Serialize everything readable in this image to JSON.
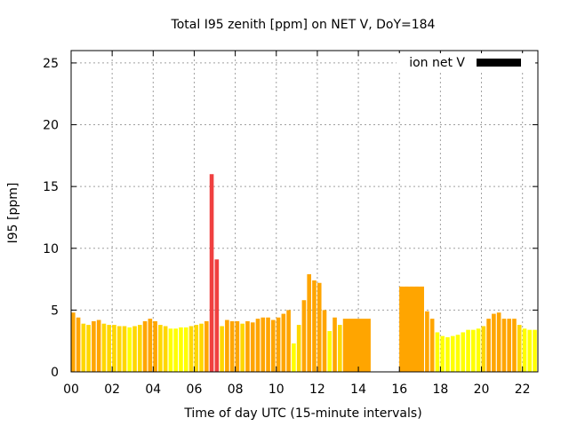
{
  "chart_data": {
    "type": "bar",
    "title": "Total I95 zenith [ppm] on NET V, DoY=184",
    "xlabel": "Time of day UTC (15-minute intervals)",
    "ylabel": "I95 [ppm]",
    "xlim": [
      0,
      22.75
    ],
    "ylim": [
      0,
      26
    ],
    "grid": true,
    "legend_position": "top-right",
    "legend": {
      "label": "ion net V",
      "color": "#000000"
    },
    "xticks": [
      "00",
      "02",
      "04",
      "06",
      "08",
      "10",
      "12",
      "14",
      "16",
      "18",
      "20",
      "22"
    ],
    "yticks": [
      "0",
      "5",
      "10",
      "15",
      "20",
      "25"
    ],
    "colors": {
      "low": "#ffff00",
      "mid": "#ffd700",
      "elevated": "#ffa500",
      "high": "#f04040"
    },
    "bar_width_hours": 0.2,
    "bars": [
      [
        0.0,
        4.8
      ],
      [
        0.25,
        4.4
      ],
      [
        0.5,
        3.9
      ],
      [
        0.75,
        3.8
      ],
      [
        1.0,
        4.1
      ],
      [
        1.25,
        4.2
      ],
      [
        1.5,
        3.9
      ],
      [
        1.75,
        3.8
      ],
      [
        2.0,
        3.8
      ],
      [
        2.25,
        3.7
      ],
      [
        2.5,
        3.7
      ],
      [
        2.75,
        3.6
      ],
      [
        3.0,
        3.7
      ],
      [
        3.25,
        3.8
      ],
      [
        3.5,
        4.1
      ],
      [
        3.75,
        4.3
      ],
      [
        4.0,
        4.1
      ],
      [
        4.25,
        3.8
      ],
      [
        4.5,
        3.7
      ],
      [
        4.75,
        3.5
      ],
      [
        5.0,
        3.5
      ],
      [
        5.25,
        3.6
      ],
      [
        5.5,
        3.6
      ],
      [
        5.75,
        3.7
      ],
      [
        6.0,
        3.8
      ],
      [
        6.25,
        3.9
      ],
      [
        6.5,
        4.1
      ],
      [
        6.75,
        16.0
      ],
      [
        7.0,
        9.1
      ],
      [
        7.25,
        3.7
      ],
      [
        7.5,
        4.2
      ],
      [
        7.75,
        4.1
      ],
      [
        8.0,
        4.1
      ],
      [
        8.25,
        3.9
      ],
      [
        8.5,
        4.1
      ],
      [
        8.75,
        4.0
      ],
      [
        9.0,
        4.3
      ],
      [
        9.25,
        4.4
      ],
      [
        9.5,
        4.4
      ],
      [
        9.75,
        4.2
      ],
      [
        10.0,
        4.4
      ],
      [
        10.25,
        4.7
      ],
      [
        10.5,
        5.0
      ],
      [
        10.75,
        2.3
      ],
      [
        11.0,
        3.8
      ],
      [
        11.25,
        5.8
      ],
      [
        11.5,
        7.9
      ],
      [
        11.75,
        7.4
      ],
      [
        12.0,
        7.2
      ],
      [
        12.25,
        5.0
      ],
      [
        12.5,
        3.3
      ],
      [
        12.75,
        4.4
      ],
      [
        13.0,
        3.8
      ],
      [
        16.0,
        6.9
      ],
      [
        16.25,
        6.9
      ],
      [
        16.5,
        6.9
      ],
      [
        16.75,
        6.9
      ],
      [
        17.0,
        6.9
      ],
      [
        17.25,
        4.9
      ],
      [
        17.5,
        4.3
      ],
      [
        17.75,
        3.2
      ],
      [
        18.0,
        2.9
      ],
      [
        18.25,
        2.8
      ],
      [
        18.5,
        2.9
      ],
      [
        18.75,
        3.0
      ],
      [
        19.0,
        3.2
      ],
      [
        19.25,
        3.4
      ],
      [
        19.5,
        3.4
      ],
      [
        19.75,
        3.5
      ],
      [
        20.0,
        3.7
      ],
      [
        20.25,
        4.3
      ],
      [
        20.5,
        4.7
      ],
      [
        20.75,
        4.8
      ],
      [
        21.0,
        4.3
      ],
      [
        21.25,
        4.3
      ],
      [
        21.5,
        4.3
      ],
      [
        21.75,
        3.8
      ],
      [
        22.0,
        3.5
      ],
      [
        22.25,
        3.4
      ],
      [
        22.5,
        3.4
      ]
    ],
    "blocks": [
      {
        "start": 13.25,
        "end": 14.6,
        "value": 4.3
      },
      {
        "start": 16.0,
        "end": 17.2,
        "value": 6.9
      }
    ]
  }
}
